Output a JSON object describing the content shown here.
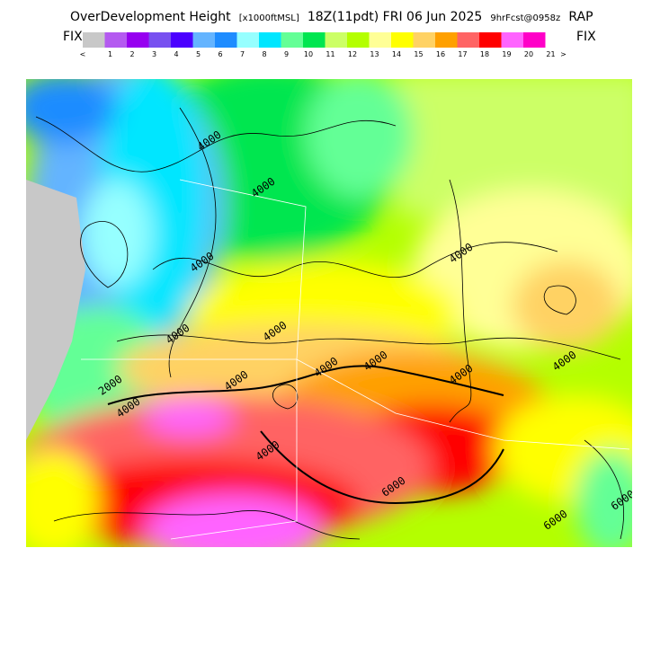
{
  "header": {
    "parts": [
      "OverDevelopment Height",
      "[x1000ftMSL]",
      "18Z(11pdt) FRI 06 Jun 2025",
      "9hrFcst@0958z",
      "RAP"
    ]
  },
  "legend": {
    "fix_left": "FIX",
    "fix_right": "FIX",
    "labels": [
      "<",
      "1",
      "2",
      "3",
      "4",
      "5",
      "6",
      "7",
      "8",
      "9",
      "10",
      "11",
      "12",
      "13",
      "14",
      "15",
      "16",
      "17",
      "18",
      "19",
      "20",
      "21",
      ">"
    ],
    "colors": [
      "#c8c8c8",
      "#b45af0",
      "#9600f0",
      "#7850f0",
      "#4b00ff",
      "#64b4ff",
      "#1e8cff",
      "#96ffff",
      "#00e6ff",
      "#64ff96",
      "#00e650",
      "#ccff66",
      "#b4ff00",
      "#ffff96",
      "#ffff00",
      "#ffd264",
      "#ffa000",
      "#ff6464",
      "#ff0000",
      "#ff64ff",
      "#ff00c8"
    ]
  },
  "contour_labels": [
    "4000",
    "4000",
    "4000",
    "4000",
    "4000",
    "4000",
    "4000",
    "4000",
    "4000",
    "4000",
    "4000",
    "2000",
    "4000",
    "4000",
    "6000",
    "6000",
    "6000"
  ]
}
